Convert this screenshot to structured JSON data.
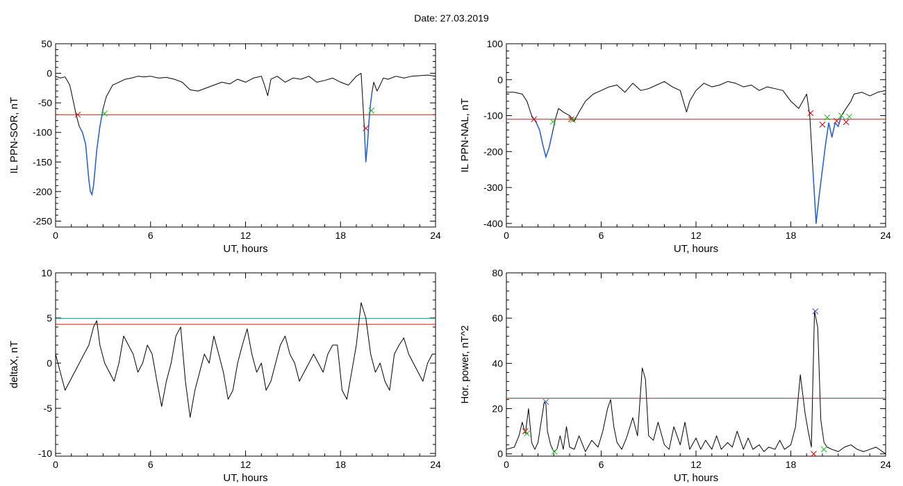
{
  "page": {
    "title": "Date:  27.03.2019"
  },
  "colors": {
    "trace": "#000000",
    "threshold": "#ff0000",
    "highlight": "#1f5fd8",
    "baseline": "#2a8f8f",
    "cross_red": "#e00000",
    "cross_green": "#22bb22",
    "cross_blue": "#3355bb"
  },
  "chart_data": [
    {
      "id": "il-sor",
      "type": "line",
      "title": "",
      "xlabel": "UT, hours",
      "ylabel": "IL PPN-SOR, nT",
      "xlim": [
        0,
        24
      ],
      "ylim": [
        -260,
        50
      ],
      "xticks": [
        0,
        6,
        12,
        18,
        24
      ],
      "yticks": [
        50,
        0,
        -50,
        -100,
        -150,
        -200,
        -250
      ],
      "thresholds": [
        {
          "value": -70,
          "color": "red"
        }
      ],
      "series": [
        {
          "x": [
            0,
            0.3,
            0.6,
            0.9,
            1.1,
            1.3,
            1.5,
            1.7,
            1.9,
            2.0,
            2.1,
            2.2,
            2.3,
            2.4,
            2.5,
            2.6,
            2.8,
            3.0,
            3.2,
            3.4,
            3.6,
            4.0,
            4.4,
            4.8,
            5.2,
            5.6,
            6.0,
            6.5,
            7.0,
            7.5,
            8.0,
            8.5,
            9.0,
            9.5,
            10.0,
            10.5,
            11.0,
            11.5,
            12.0,
            12.5,
            13.0,
            13.2,
            13.4,
            13.6,
            14.0,
            14.5,
            15.0,
            15.5,
            16.0,
            16.5,
            17.0,
            17.5,
            18.0,
            18.5,
            19.0,
            19.3,
            19.5,
            19.6,
            19.7,
            19.8,
            19.9,
            20.0,
            20.1,
            20.3,
            20.5,
            20.7,
            21.0,
            21.5,
            22.0,
            22.5,
            23.0,
            23.5,
            24.0
          ],
          "y": [
            -5,
            -8,
            -6,
            -20,
            -45,
            -70,
            -90,
            -100,
            -120,
            -150,
            -180,
            -200,
            -205,
            -190,
            -160,
            -130,
            -90,
            -60,
            -40,
            -30,
            -20,
            -15,
            -10,
            -8,
            -5,
            -6,
            -5,
            -8,
            -7,
            -10,
            -15,
            -28,
            -30,
            -25,
            -20,
            -15,
            -18,
            -10,
            -15,
            -8,
            -5,
            -20,
            -38,
            -10,
            -5,
            -15,
            -8,
            -10,
            -5,
            -15,
            -12,
            -8,
            -15,
            -20,
            -5,
            0,
            -90,
            -150,
            -120,
            -80,
            -50,
            -30,
            -15,
            -30,
            -20,
            -8,
            -10,
            -5,
            -8,
            -5,
            -4,
            -3,
            -5
          ]
        }
      ],
      "highlights": [
        {
          "x_from": 1.4,
          "x_to": 3.0
        },
        {
          "x_from": 19.5,
          "x_to": 20.0
        }
      ],
      "markers": [
        {
          "x": 1.4,
          "y": -70,
          "color": "red"
        },
        {
          "x": 3.1,
          "y": -68,
          "color": "green"
        },
        {
          "x": 19.6,
          "y": -93,
          "color": "red"
        },
        {
          "x": 19.95,
          "y": -63,
          "color": "green"
        }
      ]
    },
    {
      "id": "il-nal",
      "type": "line",
      "title": "",
      "xlabel": "UT, hours",
      "ylabel": "IL PPN-NAL, nT",
      "xlim": [
        0,
        24
      ],
      "ylim": [
        -410,
        100
      ],
      "xticks": [
        0,
        6,
        12,
        18,
        24
      ],
      "yticks": [
        100,
        0,
        -100,
        -200,
        -300,
        -400
      ],
      "thresholds": [
        {
          "value": -110,
          "color": "red"
        }
      ],
      "series": [
        {
          "x": [
            0,
            0.5,
            1.0,
            1.3,
            1.6,
            1.9,
            2.1,
            2.3,
            2.5,
            2.7,
            2.9,
            3.1,
            3.3,
            3.6,
            4.0,
            4.3,
            4.6,
            5.0,
            5.5,
            6.0,
            6.5,
            7.0,
            7.5,
            8.0,
            8.5,
            9.0,
            9.5,
            10.0,
            10.5,
            11.0,
            11.2,
            11.4,
            11.6,
            12.0,
            12.5,
            13.0,
            13.5,
            14.0,
            14.5,
            15.0,
            15.5,
            16.0,
            16.5,
            17.0,
            17.5,
            18.0,
            18.5,
            19.0,
            19.2,
            19.4,
            19.6,
            19.8,
            20.0,
            20.2,
            20.4,
            20.6,
            20.8,
            21.0,
            21.2,
            21.5,
            21.8,
            22.0,
            22.5,
            23.0,
            23.5,
            24.0
          ],
          "y": [
            -35,
            -35,
            -40,
            -60,
            -100,
            -120,
            -140,
            -180,
            -215,
            -190,
            -150,
            -110,
            -80,
            -90,
            -100,
            -115,
            -90,
            -60,
            -40,
            -30,
            -20,
            -15,
            -35,
            -10,
            -30,
            -25,
            -15,
            -5,
            -20,
            -30,
            -60,
            -90,
            -60,
            -30,
            -10,
            -20,
            -15,
            -5,
            -10,
            -20,
            -15,
            -30,
            -20,
            -25,
            -30,
            -60,
            -80,
            -40,
            -100,
            -250,
            -400,
            -320,
            -250,
            -180,
            -120,
            -160,
            -120,
            -130,
            -100,
            -80,
            -60,
            -40,
            -35,
            -45,
            -35,
            -30
          ]
        }
      ],
      "highlights": [
        {
          "x_from": 1.8,
          "x_to": 3.0
        },
        {
          "x_from": 19.4,
          "x_to": 21.3
        }
      ],
      "markers": [
        {
          "x": 1.75,
          "y": -110,
          "color": "red"
        },
        {
          "x": 2.95,
          "y": -117,
          "color": "green"
        },
        {
          "x": 4.1,
          "y": -110,
          "color": "red"
        },
        {
          "x": 4.2,
          "y": -112,
          "color": "green"
        },
        {
          "x": 19.25,
          "y": -93,
          "color": "red"
        },
        {
          "x": 20.0,
          "y": -125,
          "color": "red"
        },
        {
          "x": 20.3,
          "y": -105,
          "color": "green"
        },
        {
          "x": 20.9,
          "y": -115,
          "color": "red"
        },
        {
          "x": 21.2,
          "y": -100,
          "color": "green"
        },
        {
          "x": 21.5,
          "y": -118,
          "color": "red"
        },
        {
          "x": 21.7,
          "y": -103,
          "color": "green"
        }
      ]
    },
    {
      "id": "deltax",
      "type": "line",
      "title": "",
      "xlabel": "UT, hours",
      "ylabel": "deltaX, nT",
      "xlim": [
        0,
        24
      ],
      "ylim": [
        -10.3,
        10
      ],
      "xticks": [
        0,
        6,
        12,
        18,
        24
      ],
      "yticks": [
        10,
        5,
        0,
        -5,
        -10
      ],
      "thresholds": [
        {
          "value": 4.95,
          "color": "teal"
        },
        {
          "value": 4.3,
          "color": "red"
        }
      ],
      "series": [
        {
          "x": [
            0,
            0.3,
            0.6,
            0.9,
            1.2,
            1.5,
            1.8,
            2.1,
            2.4,
            2.6,
            2.8,
            3.1,
            3.4,
            3.7,
            4.0,
            4.3,
            4.6,
            4.9,
            5.2,
            5.5,
            5.8,
            6.1,
            6.4,
            6.7,
            7.0,
            7.3,
            7.6,
            7.9,
            8.2,
            8.5,
            8.8,
            9.1,
            9.4,
            9.7,
            10.0,
            10.3,
            10.6,
            10.9,
            11.2,
            11.5,
            11.8,
            12.1,
            12.4,
            12.7,
            13.0,
            13.3,
            13.6,
            13.9,
            14.2,
            14.5,
            14.8,
            15.1,
            15.4,
            15.7,
            16.0,
            16.3,
            16.6,
            16.9,
            17.2,
            17.5,
            17.8,
            18.1,
            18.4,
            18.7,
            19.0,
            19.3,
            19.6,
            19.9,
            20.2,
            20.5,
            20.8,
            21.1,
            21.4,
            21.7,
            22.0,
            22.3,
            22.6,
            22.9,
            23.2,
            23.5,
            23.8,
            24.0
          ],
          "y": [
            1,
            -1,
            -3,
            -2,
            -1,
            0,
            1,
            2,
            4,
            4.7,
            2,
            0,
            -1,
            -2,
            0,
            3,
            2,
            1,
            -1,
            0,
            2,
            1,
            -2,
            -4.8,
            -2,
            0,
            3,
            4,
            -2,
            -6,
            -3,
            -1,
            1,
            0,
            3,
            1,
            -1,
            -4,
            -3,
            0,
            2,
            3.8,
            1,
            -1,
            0,
            -3,
            -2,
            0,
            2,
            3,
            1,
            0,
            -2,
            -1,
            0,
            1,
            0,
            -1,
            1,
            2,
            2,
            -3,
            -4,
            -1,
            2,
            6.7,
            5,
            1,
            -1,
            0,
            -2,
            -3,
            1,
            2,
            2.8,
            1,
            0,
            -1,
            -2,
            0,
            1,
            1
          ]
        }
      ],
      "highlights": [],
      "markers": []
    },
    {
      "id": "hor-power",
      "type": "line",
      "title": "",
      "xlabel": "UT, hours",
      "ylabel": "Hor. power, nT^2",
      "xlim": [
        0,
        24
      ],
      "ylim": [
        -1,
        80
      ],
      "xticks": [
        0,
        6,
        12,
        18,
        24
      ],
      "yticks": [
        80,
        60,
        40,
        20,
        0
      ],
      "thresholds": [
        {
          "value": 24.6,
          "color": "red"
        }
      ],
      "series": [
        {
          "x": [
            0,
            0.5,
            0.8,
            1.0,
            1.2,
            1.4,
            1.6,
            1.8,
            2.0,
            2.2,
            2.4,
            2.5,
            2.6,
            2.8,
            3.0,
            3.2,
            3.4,
            3.6,
            3.8,
            4.0,
            4.3,
            4.6,
            5.0,
            5.4,
            5.8,
            6.1,
            6.4,
            6.6,
            6.8,
            7.0,
            7.3,
            7.6,
            8.0,
            8.3,
            8.6,
            8.8,
            9.0,
            9.3,
            9.6,
            10.0,
            10.3,
            10.6,
            11.0,
            11.3,
            11.6,
            12.0,
            12.3,
            12.6,
            13.0,
            13.3,
            13.6,
            14.0,
            14.3,
            14.6,
            15.0,
            15.3,
            15.6,
            16.0,
            16.3,
            16.6,
            17.0,
            17.3,
            17.6,
            18.0,
            18.3,
            18.6,
            18.9,
            19.1,
            19.3,
            19.5,
            19.7,
            19.9,
            20.1,
            20.3,
            20.6,
            21.0,
            21.4,
            21.8,
            22.2,
            22.6,
            23.0,
            23.4,
            24.0
          ],
          "y": [
            2,
            3,
            8,
            14,
            9,
            20,
            5,
            2,
            5,
            14,
            23,
            22,
            10,
            4,
            1,
            2,
            8,
            2,
            12,
            3,
            2,
            8,
            1,
            6,
            3,
            10,
            20,
            24,
            12,
            5,
            2,
            7,
            16,
            8,
            38,
            33,
            8,
            6,
            14,
            4,
            2,
            12,
            4,
            14,
            2,
            7,
            2,
            6,
            2,
            8,
            2,
            5,
            3,
            10,
            2,
            7,
            2,
            4,
            1,
            3,
            2,
            6,
            2,
            4,
            12,
            35,
            18,
            10,
            3,
            63,
            56,
            15,
            5,
            3,
            2,
            1,
            3,
            4,
            2,
            1,
            2,
            3,
            0
          ]
        }
      ],
      "highlights": [],
      "markers": [
        {
          "x": 1.2,
          "y": 10,
          "color": "red"
        },
        {
          "x": 1.3,
          "y": 9,
          "color": "green"
        },
        {
          "x": 2.5,
          "y": 23,
          "color": "blue"
        },
        {
          "x": 3.05,
          "y": 1,
          "color": "green"
        },
        {
          "x": 19.55,
          "y": 63,
          "color": "blue"
        },
        {
          "x": 19.45,
          "y": 0,
          "color": "red"
        },
        {
          "x": 20.1,
          "y": 2,
          "color": "green"
        }
      ]
    }
  ]
}
